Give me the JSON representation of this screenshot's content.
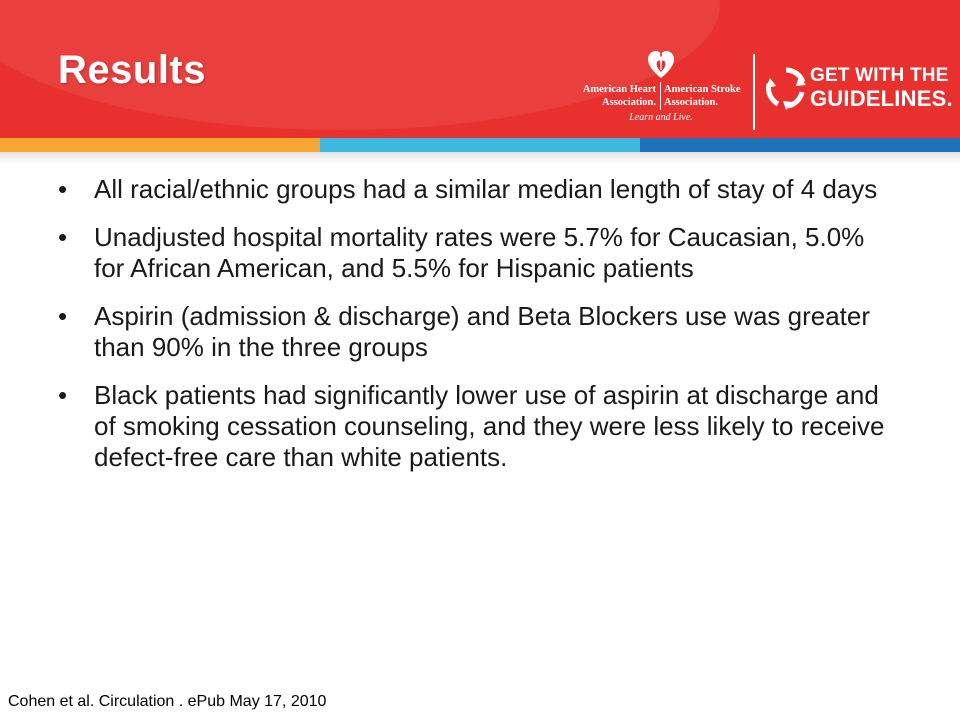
{
  "slide": {
    "title": "Results",
    "bullet_marker": "•",
    "bullets": [
      "All racial/ethnic groups had a similar median length of stay of 4 days",
      "Unadjusted hospital mortality rates were 5.7% for Caucasian, 5.0% for African American, and 5.5% for Hispanic patients",
      "Aspirin (admission & discharge) and Beta Blockers use was greater than 90% in the three groups",
      "Black patients had significantly lower use of aspirin at discharge and of smoking cessation counseling, and they were less likely to receive defect-free care than white patients."
    ],
    "citation": "Cohen et al. Circulation . ePub May 17, 2010"
  },
  "logos": {
    "aha": {
      "line1_left": "American Heart",
      "line1_right": "American Stroke",
      "line2_left": "Association.",
      "line2_right": "Association.",
      "tagline": "Learn and Live."
    },
    "gwtg": {
      "line1": "GET WITH THE",
      "line2": "GUIDELINES."
    }
  },
  "colors": {
    "header_red": "#e8312f",
    "stripe_orange": "#f7a533",
    "stripe_light_blue": "#3fb8e0",
    "stripe_dark_blue": "#1f72b8"
  },
  "icons": [
    "heart-torch-icon",
    "gwtg-arrows-icon"
  ]
}
